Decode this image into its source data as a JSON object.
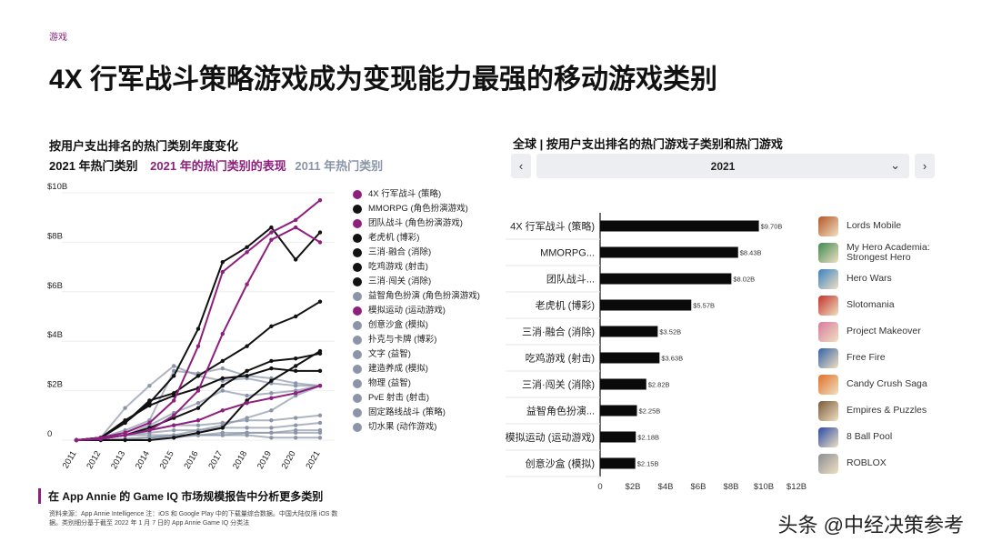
{
  "tag": "游戏",
  "title": "4X 行军战斗策略游戏成为变现能力最强的移动游戏类别",
  "left": {
    "heading": "按用户支出排名的热门类别年度变化",
    "legend_row": [
      "2021 年热门类别",
      "2021 年的热门类别的表现",
      "2011 年热门类别"
    ],
    "footer": "在 App Annie 的 Game IQ 市场规模报告中分析更多类别",
    "source": "资料来源：App Annie Intelligence 注：iOS 和 Google Play 中的下载量综合数据。中国大陆仅限 iOS 数据。类别细分基于截至 2022 年 1 月 7 日的 App Annie Game IQ 分类法"
  },
  "right": {
    "heading": "全球 | 按用户支出排名的热门游戏子类别和热门游戏",
    "year": "2021",
    "prev_icon": "chevron-left-icon",
    "next_icon": "chevron-right-icon",
    "games": [
      {
        "name": "Lords Mobile",
        "color": "#b5562a"
      },
      {
        "name": "My Hero Academia: Strongest Hero",
        "color": "#3d8a55"
      },
      {
        "name": "Hero Wars",
        "color": "#3a82c4"
      },
      {
        "name": "Slotomania",
        "color": "#c4322e"
      },
      {
        "name": "Project Makeover",
        "color": "#d87aa0"
      },
      {
        "name": "Free Fire",
        "color": "#3462a8"
      },
      {
        "name": "Candy Crush Saga",
        "color": "#e0702a"
      },
      {
        "name": "Empires & Puzzles",
        "color": "#7a5a3a"
      },
      {
        "name": "8 Ball Pool",
        "color": "#2a4aa8"
      },
      {
        "name": "ROBLOX",
        "color": "#8a8e96"
      }
    ]
  },
  "watermark": "头条 @中经决策参考",
  "colors": {
    "purple": "#8e1f7e",
    "black": "#111111",
    "gray": "#8a95a8"
  },
  "chart_data": [
    {
      "type": "line",
      "x": [
        "2011",
        "2012",
        "2013",
        "2014",
        "2015",
        "2016",
        "2017",
        "2018",
        "2019",
        "2020",
        "2021"
      ],
      "ylim": [
        0,
        10
      ],
      "y_ticks": [
        "0",
        "$2B",
        "$4B",
        "$6B",
        "$8B",
        "$10B"
      ],
      "legend_placement": "right",
      "series": [
        {
          "name": "4X 行军战斗 (策略)",
          "color": "#8e1f7e",
          "values": [
            0,
            0.1,
            0.3,
            0.7,
            1.6,
            3.8,
            6.8,
            7.6,
            8.4,
            8.9,
            9.7
          ]
        },
        {
          "name": "MMORPG (角色扮演游戏)",
          "color": "#111111",
          "values": [
            0,
            0.1,
            0.7,
            1.5,
            2.6,
            4.5,
            7.2,
            7.8,
            8.6,
            7.3,
            8.4
          ]
        },
        {
          "name": "团队战斗 (角色扮演游戏)",
          "color": "#8e1f7e",
          "values": [
            0,
            0.05,
            0.2,
            0.4,
            1.0,
            2.0,
            4.3,
            6.3,
            8.1,
            8.6,
            8.0
          ]
        },
        {
          "name": "老虎机 (博彩)",
          "color": "#111111",
          "values": [
            0,
            0.1,
            0.7,
            1.6,
            1.9,
            2.6,
            3.2,
            3.8,
            4.6,
            5.0,
            5.6
          ]
        },
        {
          "name": "三消·融合 (消除)",
          "color": "#111111",
          "values": [
            0,
            0.05,
            0.2,
            0.5,
            0.9,
            1.3,
            2.2,
            2.8,
            3.2,
            3.3,
            3.5
          ]
        },
        {
          "name": "吃鸡游戏 (射击)",
          "color": "#111111",
          "values": [
            0,
            0,
            0,
            0,
            0.1,
            0.3,
            0.5,
            1.6,
            2.4,
            3.0,
            3.6
          ]
        },
        {
          "name": "三消·闯关 (消除)",
          "color": "#111111",
          "values": [
            0,
            0.1,
            0.8,
            1.4,
            1.8,
            2.1,
            2.5,
            2.6,
            2.9,
            2.8,
            2.8
          ]
        },
        {
          "name": "益智角色扮演 (角色扮演游戏)",
          "color": "#8a95a8",
          "values": [
            0,
            0.05,
            0.2,
            0.6,
            1.1,
            1.5,
            2.0,
            1.8,
            1.9,
            2.0,
            2.2
          ]
        },
        {
          "name": "模拟运动 (运动游戏)",
          "color": "#8e1f7e",
          "values": [
            0,
            0.05,
            0.2,
            0.4,
            0.6,
            0.8,
            1.2,
            1.5,
            1.7,
            1.9,
            2.2
          ]
        },
        {
          "name": "创意沙盒 (模拟)",
          "color": "#8a95a8",
          "values": [
            0,
            0,
            0.05,
            0.1,
            0.2,
            0.4,
            0.6,
            0.9,
            1.2,
            1.8,
            2.2
          ]
        },
        {
          "name": "扑克与卡牌 (博彩)",
          "color": "#8a95a8",
          "values": [
            0,
            0.1,
            1.3,
            2.2,
            3.0,
            2.6,
            2.4,
            2.5,
            2.3,
            2.2,
            2.2
          ]
        },
        {
          "name": "文字 (益智)",
          "color": "#8a95a8",
          "values": [
            0,
            0.1,
            0.4,
            0.8,
            2.8,
            2.7,
            2.9,
            2.6,
            2.5,
            2.3,
            2.2
          ]
        },
        {
          "name": "建造养成 (模拟)",
          "color": "#8a95a8",
          "values": [
            0,
            0.05,
            0.2,
            0.4,
            0.6,
            0.6,
            0.7,
            0.8,
            0.8,
            0.9,
            1.0
          ]
        },
        {
          "name": "物理 (益智)",
          "color": "#8a95a8",
          "values": [
            0,
            0.05,
            0.2,
            0.3,
            0.4,
            0.4,
            0.5,
            0.5,
            0.5,
            0.6,
            0.7
          ]
        },
        {
          "name": "PvE 射击 (射击)",
          "color": "#8a95a8",
          "values": [
            0,
            0,
            0.05,
            0.1,
            0.2,
            0.2,
            0.3,
            0.3,
            0.3,
            0.4,
            0.4
          ]
        },
        {
          "name": "固定路线战斗 (策略)",
          "color": "#8a95a8",
          "values": [
            0,
            0,
            0.05,
            0.1,
            0.1,
            0.2,
            0.2,
            0.3,
            0.3,
            0.3,
            0.3
          ]
        },
        {
          "name": "切水果 (动作游戏)",
          "color": "#8a95a8",
          "values": [
            0,
            0.1,
            0.2,
            0.2,
            0.2,
            0.2,
            0.2,
            0.2,
            0.1,
            0.1,
            0.1
          ]
        }
      ]
    },
    {
      "type": "bar",
      "orientation": "horizontal",
      "categories": [
        "4X 行军战斗 (策略)",
        "MMORPG...",
        "团队战斗...",
        "老虎机 (博彩)",
        "三消·融合 (消除)",
        "吃鸡游戏 (射击)",
        "三消·闯关 (消除)",
        "益智角色扮演...",
        "模拟运动 (运动游戏)",
        "创意沙盒 (模拟)"
      ],
      "values": [
        9.7,
        8.43,
        8.02,
        5.57,
        3.52,
        3.63,
        2.82,
        2.25,
        2.18,
        2.15
      ],
      "data_labels": [
        "$9.70B",
        "$8.43B",
        "$8.02B",
        "$5.57B",
        "$3.52B",
        "$3.63B",
        "$2.82B",
        "$2.25B",
        "$2.18B",
        "$2.15B"
      ],
      "x_ticks": [
        "0",
        "$2B",
        "$4B",
        "$6B",
        "$8B",
        "$10B",
        "$12B"
      ],
      "xlim": [
        0,
        12
      ]
    }
  ]
}
